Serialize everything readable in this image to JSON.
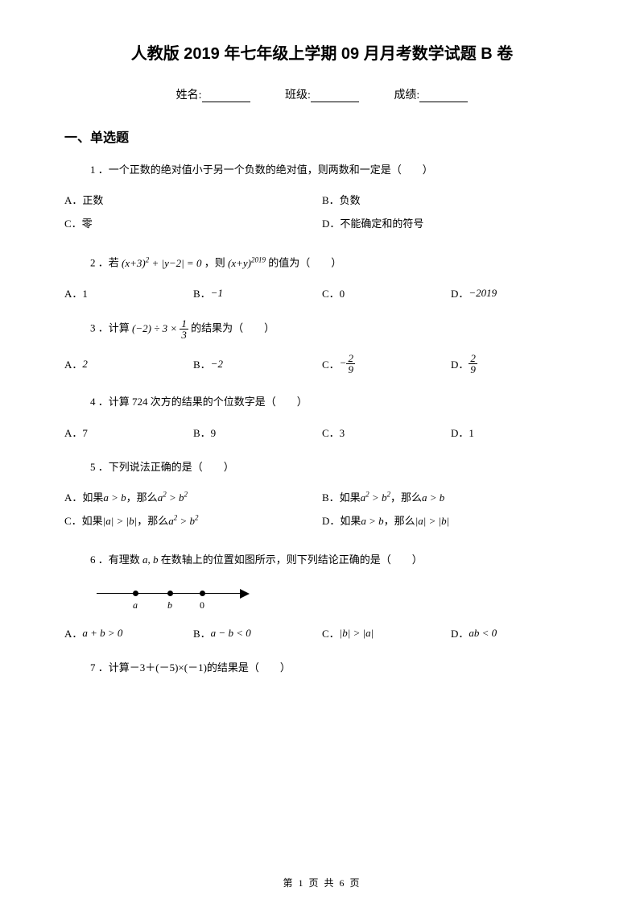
{
  "title": "人教版 2019 年七年级上学期 09 月月考数学试题 B 卷",
  "info": {
    "name": "姓名:",
    "class": "班级:",
    "score": "成绩:"
  },
  "section1": "一、单选题",
  "q1": {
    "text": "1 ．一个正数的绝对值小于另一个负数的绝对值，则两数和一定是（　　）",
    "A": "A．正数",
    "B": "B．负数",
    "C": "C．零",
    "D": "D．不能确定和的符号"
  },
  "q2": {
    "prefix": "2 ．若",
    "mid": "，则",
    "suffix": "的值为（　　）",
    "A": "A．1",
    "B_prefix": "B．",
    "B_val": "−1",
    "C": "C．0",
    "D_prefix": "D．",
    "D_val": "−2019"
  },
  "q3": {
    "prefix": "3 ．计算",
    "suffix": "的结果为（　　）",
    "A_prefix": "A．",
    "A_val": "2",
    "B_prefix": "B．",
    "B_val": "−2",
    "C_prefix": "C．",
    "D_prefix": "D．"
  },
  "q4": {
    "text": "4 ．计算 724 次方的结果的个位数字是（　　）",
    "A": "A．7",
    "B": "B．9",
    "C": "C．3",
    "D": "D．1"
  },
  "q5": {
    "text": "5 ．下列说法正确的是（　　）",
    "A_pre": "A．如果",
    "A_mid": "，那么",
    "B_pre": "B．如果",
    "B_mid": "，那么",
    "C_pre": "C．如果",
    "C_mid": "，那么",
    "D_pre": "D．如果",
    "D_mid": "，那么"
  },
  "q6": {
    "prefix": "6 ．有理数",
    "suffix": "在数轴上的位置如图所示，则下列结论正确的是（　　）",
    "labels": {
      "a": "a",
      "b": "b",
      "zero": "0"
    },
    "A_pre": "A．",
    "B_pre": "B．",
    "C_pre": "C．",
    "D_pre": "D．",
    "positions": {
      "a_dot": 45,
      "b_dot": 88,
      "zero_dot": 128
    }
  },
  "q7": {
    "text": "7 ．计算－3＋(－5)×(－1)的结果是（　　）"
  },
  "footer": {
    "pre": "第 ",
    "cur": "1",
    "mid": " 页 共 ",
    "total": "6",
    "post": " 页"
  }
}
